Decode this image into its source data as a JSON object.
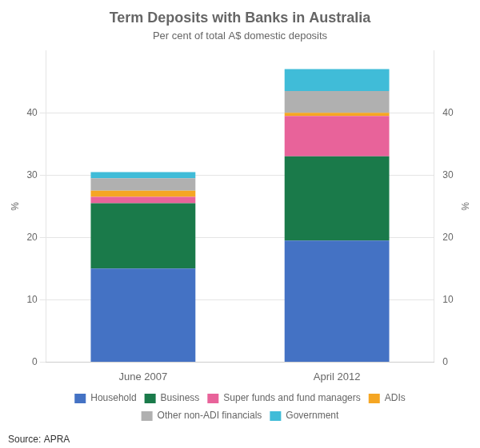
{
  "chart_data": {
    "type": "bar",
    "stacked": true,
    "title": "Term Deposits with Banks in Australia",
    "subtitle": "Per cent of total A$ domestic deposits",
    "source": "Source: APRA",
    "categories": [
      "June 2007",
      "April 2012"
    ],
    "series": [
      {
        "name": "Household",
        "color": "#4472c4",
        "values": [
          15.0,
          19.5
        ]
      },
      {
        "name": "Business",
        "color": "#1a7a4a",
        "values": [
          10.5,
          13.5
        ]
      },
      {
        "name": "Super funds and fund managers",
        "color": "#e8639a",
        "values": [
          1.0,
          6.5
        ]
      },
      {
        "name": "ADIs",
        "color": "#f5a623",
        "values": [
          1.0,
          0.5
        ]
      },
      {
        "name": "Other non-ADI financials",
        "color": "#b0b0b0",
        "values": [
          2.0,
          3.5
        ]
      },
      {
        "name": "Government",
        "color": "#40bcd8",
        "values": [
          1.0,
          3.5
        ]
      }
    ],
    "ylabel": "%",
    "ylim": [
      0,
      50
    ],
    "yticks": [
      0,
      10,
      20,
      30,
      40
    ],
    "y2label": "%",
    "y2lim": [
      0,
      50
    ],
    "y2ticks": [
      0,
      10,
      20,
      30,
      40
    ],
    "grid": true,
    "legend": "bottom"
  }
}
